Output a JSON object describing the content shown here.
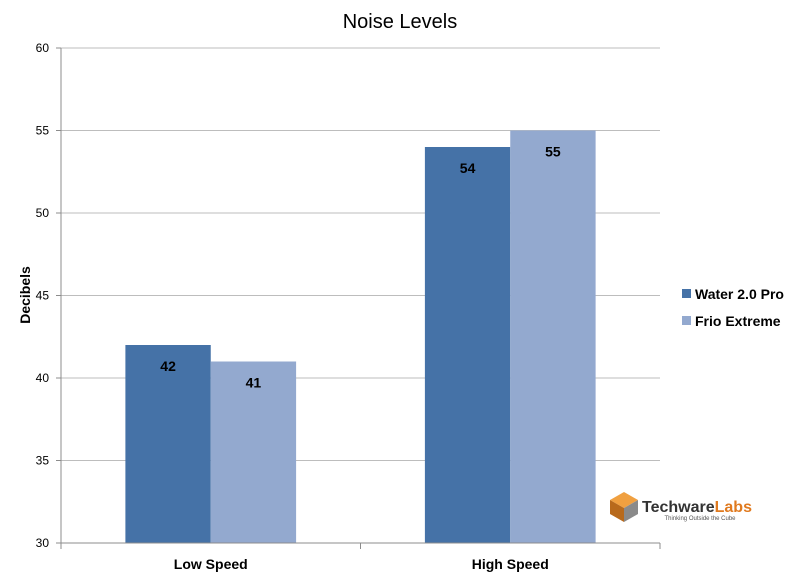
{
  "chart_data": {
    "type": "bar",
    "title": "Noise Levels",
    "xlabel": "",
    "ylabel": "Decibels",
    "categories": [
      "Low Speed",
      "High Speed"
    ],
    "series": [
      {
        "name": "Water 2.0 Pro",
        "values": [
          42,
          54
        ],
        "color": "#4572a7"
      },
      {
        "name": "Frio Extreme",
        "values": [
          41,
          55
        ],
        "color": "#93a9cf"
      }
    ],
    "ylim": [
      30,
      60
    ],
    "yticks": [
      30,
      35,
      40,
      45,
      50,
      55,
      60
    ],
    "grid": true,
    "legend_position": "right"
  },
  "watermark": {
    "brand_main": "Techware",
    "brand_accent": "Labs",
    "tagline": "Thinking Outside the Cube"
  }
}
